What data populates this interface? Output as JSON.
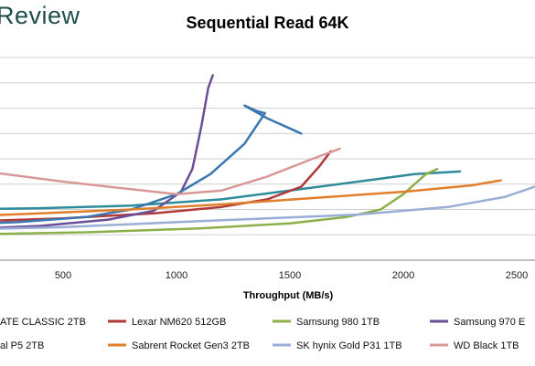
{
  "header": {
    "logo_text": "Review"
  },
  "chart_data": {
    "type": "line",
    "title": "Sequential Read 64K",
    "xlabel": "Throughput (MB/s)",
    "ylabel": "",
    "xlim": [
      0,
      2600
    ],
    "ylim": [
      0,
      8
    ],
    "x_ticks": [
      500,
      1000,
      1500,
      2000,
      2500
    ],
    "grid": "horizontal",
    "legend_position": "bottom",
    "series": [
      {
        "name": "ATE CLASSIC 2TB",
        "color": "#2e8b9a",
        "points": [
          [
            0,
            2.0
          ],
          [
            400,
            2.05
          ],
          [
            800,
            2.15
          ],
          [
            1200,
            2.4
          ],
          [
            1500,
            2.75
          ],
          [
            1800,
            3.1
          ],
          [
            2050,
            3.4
          ],
          [
            2250,
            3.5
          ]
        ]
      },
      {
        "name": "Lexar NM620 512GB",
        "color": "#b03a3a",
        "points": [
          [
            0,
            1.5
          ],
          [
            500,
            1.65
          ],
          [
            900,
            1.85
          ],
          [
            1200,
            2.1
          ],
          [
            1400,
            2.4
          ],
          [
            1550,
            2.9
          ],
          [
            1630,
            3.7
          ],
          [
            1680,
            4.3
          ]
        ]
      },
      {
        "name": "Samsung 980 1TB",
        "color": "#8bb04a",
        "points": [
          [
            0,
            1.0
          ],
          [
            600,
            1.1
          ],
          [
            1100,
            1.25
          ],
          [
            1500,
            1.45
          ],
          [
            1750,
            1.7
          ],
          [
            1900,
            2.0
          ],
          [
            2000,
            2.6
          ],
          [
            2100,
            3.4
          ],
          [
            2150,
            3.6
          ]
        ]
      },
      {
        "name": "Samsung 970 E",
        "color": "#6b4f96",
        "points": [
          [
            0,
            1.2
          ],
          [
            400,
            1.35
          ],
          [
            700,
            1.6
          ],
          [
            900,
            1.95
          ],
          [
            1020,
            2.7
          ],
          [
            1070,
            3.6
          ],
          [
            1110,
            5.3
          ],
          [
            1140,
            6.8
          ],
          [
            1160,
            7.3
          ]
        ]
      },
      {
        "name": "al P5 2TB",
        "color": "#3a76b0",
        "points": [
          [
            0,
            1.4
          ],
          [
            300,
            1.5
          ],
          [
            600,
            1.7
          ],
          [
            800,
            2.0
          ],
          [
            1000,
            2.6
          ],
          [
            1150,
            3.4
          ],
          [
            1300,
            4.6
          ],
          [
            1390,
            5.8
          ],
          [
            1350,
            5.9
          ],
          [
            1300,
            6.1
          ],
          [
            1400,
            5.6
          ],
          [
            1550,
            5.0
          ]
        ]
      },
      {
        "name": "Sabrent Rocket Gen3 2TB",
        "color": "#e07e2c",
        "points": [
          [
            0,
            1.7
          ],
          [
            400,
            1.85
          ],
          [
            800,
            2.0
          ],
          [
            1200,
            2.2
          ],
          [
            1600,
            2.45
          ],
          [
            2000,
            2.7
          ],
          [
            2300,
            2.95
          ],
          [
            2430,
            3.15
          ]
        ]
      },
      {
        "name": "SK hynix Gold P31 1TB",
        "color": "#9aadd6",
        "points": [
          [
            0,
            1.2
          ],
          [
            500,
            1.3
          ],
          [
            1000,
            1.5
          ],
          [
            1400,
            1.65
          ],
          [
            1800,
            1.8
          ],
          [
            2200,
            2.1
          ],
          [
            2450,
            2.5
          ],
          [
            2580,
            2.9
          ]
        ]
      },
      {
        "name": "WD Black 1TB",
        "color": "#d89898",
        "points": [
          [
            0,
            3.5
          ],
          [
            200,
            3.45
          ],
          [
            500,
            3.1
          ],
          [
            800,
            2.8
          ],
          [
            1000,
            2.6
          ],
          [
            1200,
            2.75
          ],
          [
            1400,
            3.3
          ],
          [
            1600,
            4.0
          ],
          [
            1720,
            4.4
          ]
        ]
      }
    ]
  }
}
